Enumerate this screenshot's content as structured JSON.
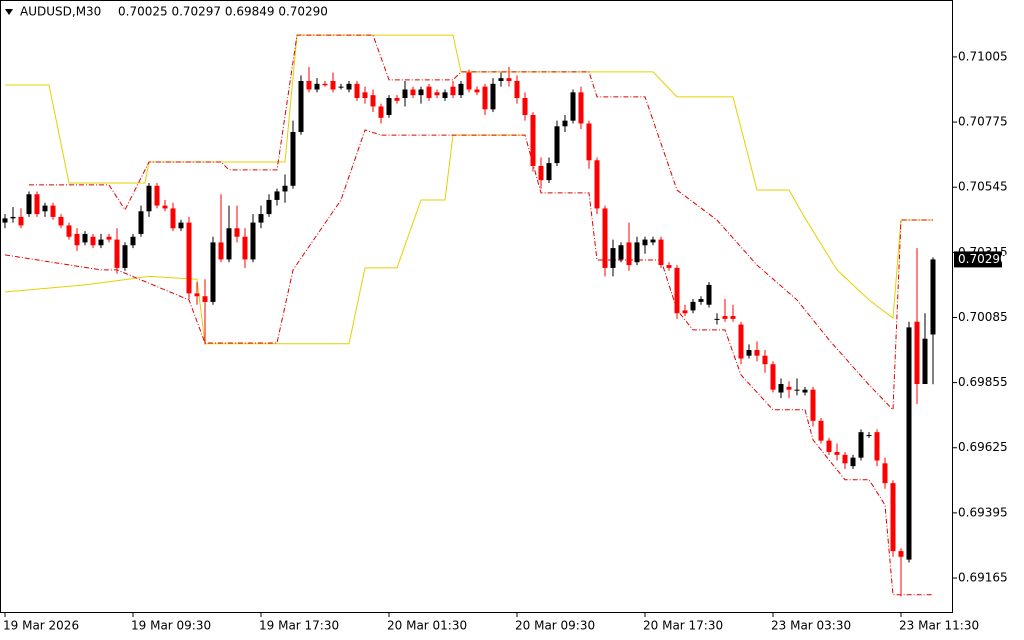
{
  "chart_data": {
    "type": "candlestick",
    "title": "AUDUSD,M30",
    "subtitle": "0.70025 0.70297 0.69849 0.70290",
    "up_color": "#000000",
    "down_color": "#ff0000",
    "ylim": [
      0.69045,
      0.71206
    ],
    "yticks": [
      0.71005,
      0.70775,
      0.70545,
      0.70315,
      0.70085,
      0.69855,
      0.69625,
      0.69395,
      0.69165
    ],
    "last_price": {
      "value": 0.7029,
      "label": "0.70290"
    },
    "categories": [
      "19 Mar 2026",
      null,
      null,
      null,
      null,
      null,
      null,
      null,
      null,
      null,
      null,
      null,
      null,
      null,
      null,
      null,
      "19 Mar 09:30",
      null,
      null,
      null,
      null,
      null,
      null,
      null,
      null,
      null,
      null,
      null,
      null,
      null,
      null,
      null,
      "19 Mar 17:30",
      null,
      null,
      null,
      null,
      null,
      null,
      null,
      null,
      null,
      null,
      null,
      null,
      null,
      null,
      null,
      "20 Mar 01:30",
      null,
      null,
      null,
      null,
      null,
      null,
      null,
      null,
      null,
      null,
      null,
      null,
      null,
      null,
      null,
      "20 Mar 09:30",
      null,
      null,
      null,
      null,
      null,
      null,
      null,
      null,
      null,
      null,
      null,
      null,
      null,
      null,
      null,
      "20 Mar 17:30",
      null,
      null,
      null,
      null,
      null,
      null,
      null,
      null,
      null,
      null,
      null,
      null,
      null,
      null,
      null,
      "23 Mar 03:30",
      null,
      null,
      null,
      null,
      null,
      null,
      null,
      null,
      null,
      null,
      null,
      null,
      null,
      null,
      null,
      "23 Mar 11:30",
      null,
      null,
      null,
      null
    ],
    "open": [
      0.7042,
      0.70435,
      0.7044,
      0.7045,
      0.7052,
      0.7046,
      0.7048,
      0.7044,
      0.7041,
      0.7038,
      0.7035,
      0.7037,
      0.7034,
      0.7037,
      0.7036,
      0.7026,
      0.7034,
      0.7038,
      0.7046,
      0.7055,
      0.7048,
      0.7047,
      0.704,
      0.7042,
      0.7017,
      0.7016,
      0.7014,
      0.7035,
      0.7029,
      0.704,
      0.7037,
      0.7029,
      0.7042,
      0.7045,
      0.705,
      0.7053,
      0.7055,
      0.7074,
      0.7092,
      0.7089,
      0.7091,
      0.7092,
      0.709,
      0.7089,
      0.7091,
      0.7088,
      0.7087,
      0.7083,
      0.708,
      0.7086,
      0.7086,
      0.7089,
      0.7087,
      0.709,
      0.7088,
      0.7086,
      0.709,
      0.7087,
      0.7095,
      0.7089,
      0.709,
      0.7082,
      0.7092,
      0.7093,
      0.7092,
      0.7086,
      0.708,
      0.7062,
      0.7057,
      0.7063,
      0.7076,
      0.7078,
      0.7088,
      0.7077,
      0.7064,
      0.7047,
      0.7026,
      0.7029,
      0.7035,
      0.7028,
      0.7034,
      0.7035,
      0.7036,
      0.7027,
      0.7026,
      0.7011,
      0.7011,
      0.7014,
      0.7013,
      0.7008,
      0.7009,
      0.7009,
      0.7006,
      0.6995,
      0.6997,
      0.6995,
      0.6992,
      0.6982,
      0.6984,
      0.6983,
      0.6982,
      0.6983,
      0.6972,
      0.6965,
      0.6961,
      0.696,
      0.6956,
      0.6959,
      0.6967,
      0.6968,
      0.6957,
      0.695,
      0.6926,
      0.6923,
      0.7007,
      0.6985,
      0.70025
    ],
    "high": [
      0.7045,
      0.70475,
      0.7047,
      0.7053,
      0.7053,
      0.7049,
      0.7049,
      0.7045,
      0.7042,
      0.704,
      0.7039,
      0.7038,
      0.7038,
      0.7038,
      0.704,
      0.7035,
      0.7038,
      0.7048,
      0.7056,
      0.7056,
      0.705,
      0.7049,
      0.7043,
      0.7044,
      0.7021,
      0.7022,
      0.7037,
      0.7052,
      0.7048,
      0.7048,
      0.704,
      0.7045,
      0.7048,
      0.7052,
      0.7054,
      0.7059,
      0.7078,
      0.7094,
      0.7097,
      0.7093,
      0.7092,
      0.7095,
      0.7091,
      0.7092,
      0.7092,
      0.709,
      0.7089,
      0.7084,
      0.7087,
      0.7087,
      0.7092,
      0.709,
      0.709,
      0.7091,
      0.7089,
      0.7089,
      0.7092,
      0.7092,
      0.7096,
      0.709,
      0.7091,
      0.7093,
      0.7095,
      0.7097,
      0.7094,
      0.7088,
      0.7081,
      0.7065,
      0.7065,
      0.7078,
      0.708,
      0.7089,
      0.709,
      0.7078,
      0.7065,
      0.7048,
      0.7036,
      0.7035,
      0.7042,
      0.7037,
      0.7037,
      0.7037,
      0.7037,
      0.7028,
      0.7027,
      0.7013,
      0.7015,
      0.7016,
      0.7021,
      0.701,
      0.7015,
      0.7013,
      0.7007,
      0.6999,
      0.7,
      0.6997,
      0.6993,
      0.6987,
      0.6986,
      0.6987,
      0.6984,
      0.6984,
      0.6973,
      0.6966,
      0.6964,
      0.6961,
      0.696,
      0.6969,
      0.6968,
      0.6969,
      0.6959,
      0.6951,
      0.6927,
      0.7007,
      0.7033,
      0.701,
      0.70297
    ],
    "low": [
      0.704,
      0.7042,
      0.704,
      0.7044,
      0.7044,
      0.7044,
      0.7043,
      0.704,
      0.7036,
      0.7032,
      0.7034,
      0.7033,
      0.7033,
      0.7035,
      0.7024,
      0.7025,
      0.7033,
      0.7037,
      0.7044,
      0.7047,
      0.7046,
      0.7039,
      0.7039,
      0.7015,
      0.7013,
      0.6999,
      0.7013,
      0.7028,
      0.7028,
      0.7035,
      0.7026,
      0.7028,
      0.704,
      0.7044,
      0.7048,
      0.7049,
      0.7054,
      0.7073,
      0.7088,
      0.7088,
      0.709,
      0.7088,
      0.7089,
      0.7088,
      0.7085,
      0.7084,
      0.7081,
      0.7077,
      0.7079,
      0.7084,
      0.7083,
      0.7086,
      0.7084,
      0.7085,
      0.7086,
      0.7085,
      0.7086,
      0.7086,
      0.7088,
      0.7087,
      0.708,
      0.7081,
      0.709,
      0.709,
      0.7084,
      0.7078,
      0.706,
      0.7054,
      0.7056,
      0.7062,
      0.7074,
      0.7077,
      0.7075,
      0.7061,
      0.7045,
      0.7023,
      0.7023,
      0.7028,
      0.7025,
      0.7027,
      0.7031,
      0.7034,
      0.7026,
      0.7025,
      0.7008,
      0.7009,
      0.701,
      0.7013,
      0.7012,
      0.7006,
      0.7007,
      0.7007,
      0.6992,
      0.6994,
      0.6993,
      0.6989,
      0.6982,
      0.698,
      0.698,
      0.6981,
      0.6981,
      0.697,
      0.6964,
      0.696,
      0.6958,
      0.6955,
      0.6955,
      0.6958,
      0.6966,
      0.6956,
      0.6948,
      0.6924,
      0.691,
      0.6922,
      0.6978,
      0.6985,
      0.69849
    ],
    "close": [
      0.70435,
      0.7044,
      0.7041,
      0.7052,
      0.7045,
      0.7048,
      0.7044,
      0.7041,
      0.7037,
      0.7034,
      0.7038,
      0.7034,
      0.7036,
      0.7036,
      0.7026,
      0.7034,
      0.7037,
      0.7046,
      0.7055,
      0.7048,
      0.7047,
      0.704,
      0.7042,
      0.7017,
      0.7016,
      0.7014,
      0.7035,
      0.7029,
      0.704,
      0.7037,
      0.7029,
      0.7042,
      0.7045,
      0.705,
      0.7053,
      0.7055,
      0.7074,
      0.7092,
      0.7089,
      0.7091,
      0.70905,
      0.7089,
      0.709,
      0.7091,
      0.7086,
      0.7086,
      0.7083,
      0.7079,
      0.7086,
      0.7085,
      0.7089,
      0.7087,
      0.7089,
      0.7086,
      0.7087,
      0.7088,
      0.7087,
      0.7091,
      0.7089,
      0.7088,
      0.7082,
      0.7091,
      0.7093,
      0.7092,
      0.7086,
      0.708,
      0.7062,
      0.7057,
      0.7063,
      0.7076,
      0.7078,
      0.7088,
      0.7077,
      0.7064,
      0.7047,
      0.7026,
      0.7033,
      0.7034,
      0.7027,
      0.7035,
      0.7036,
      0.7036,
      0.7027,
      0.7026,
      0.701,
      0.701,
      0.7014,
      0.7015,
      0.702,
      0.7008,
      0.7008,
      0.7008,
      0.6994,
      0.6997,
      0.6995,
      0.6992,
      0.6983,
      0.6985,
      0.6983,
      0.6983,
      0.6983,
      0.6972,
      0.6965,
      0.6961,
      0.696,
      0.6957,
      0.6959,
      0.6968,
      0.6967,
      0.6958,
      0.695,
      0.6926,
      0.6924,
      0.7005,
      0.6985,
      0.7001,
      0.7029
    ],
    "lines": [
      {
        "color": "#e6d000",
        "style": "solid",
        "x": [
          0,
          5.5,
          8,
          17.5,
          18,
          35,
          36.5,
          56,
          57,
          81,
          84,
          91,
          94,
          98,
          100,
          104,
          108,
          111,
          112,
          116
        ],
        "values": [
          0.70906,
          0.70906,
          0.7056,
          0.7056,
          0.70634,
          0.70634,
          0.71082,
          0.71082,
          0.70952,
          0.70952,
          0.70864,
          0.70864,
          0.70535,
          0.70535,
          0.70436,
          0.70253,
          0.70147,
          0.70083,
          0.70429,
          0.70429
        ]
      },
      {
        "color": "#e6d000",
        "style": "solid",
        "x": [
          0,
          10,
          18,
          24,
          25,
          43,
          45,
          49,
          52,
          55,
          56,
          65
        ],
        "values": [
          0.70175,
          0.702,
          0.7023,
          0.7022,
          0.69992,
          0.69992,
          0.7026,
          0.7026,
          0.705,
          0.705,
          0.70729,
          0.70729
        ]
      },
      {
        "color": "#e00000",
        "style": "dashdot",
        "x": [
          3,
          13,
          15,
          18,
          27,
          28,
          34,
          36.5,
          46,
          48,
          56,
          57,
          73,
          74,
          80,
          84,
          89,
          94,
          99,
          103,
          108,
          111,
          112,
          116
        ],
        "values": [
          0.70553,
          0.70553,
          0.70465,
          0.70634,
          0.70634,
          0.70606,
          0.70606,
          0.71082,
          0.71082,
          0.70924,
          0.70924,
          0.70952,
          0.70952,
          0.70864,
          0.70864,
          0.70535,
          0.70429,
          0.7027,
          0.70147,
          0.70006,
          0.69847,
          0.69759,
          0.70429,
          0.70429
        ]
      },
      {
        "color": "#e00000",
        "style": "dashdot",
        "x": [
          0,
          12,
          14,
          23,
          25,
          34,
          36,
          42,
          45,
          47,
          65,
          67,
          73,
          74,
          82,
          84,
          86,
          90,
          92,
          96,
          100,
          101,
          103,
          105,
          108,
          110,
          111,
          116
        ],
        "values": [
          0.70306,
          0.70253,
          0.70253,
          0.70147,
          0.69995,
          0.69995,
          0.70253,
          0.705,
          0.70747,
          0.70729,
          0.70729,
          0.70525,
          0.70525,
          0.70288,
          0.70288,
          0.70112,
          0.70041,
          0.70041,
          0.69882,
          0.69759,
          0.69759,
          0.69653,
          0.69582,
          0.69512,
          0.69512,
          0.69423,
          0.69106,
          0.69106
        ]
      }
    ]
  }
}
